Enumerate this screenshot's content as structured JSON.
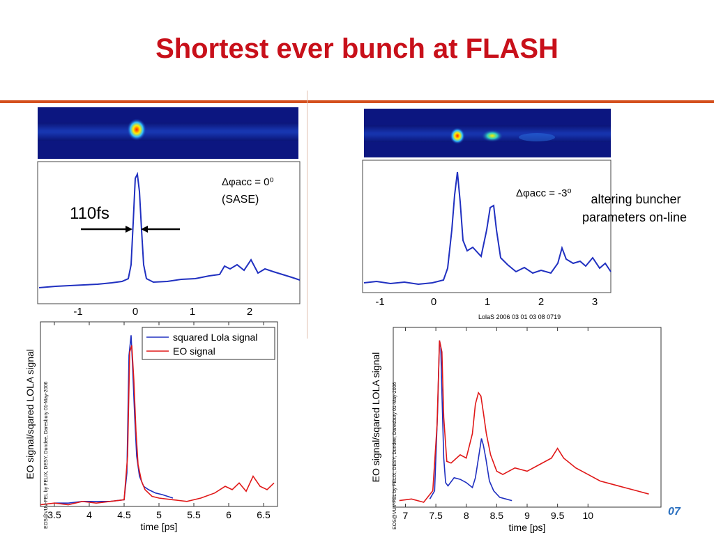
{
  "slide": {
    "title": "Shortest ever bunch at FLASH",
    "footer_fragment": "07"
  },
  "colors": {
    "title": "#c8101a",
    "rule": "#d4501e",
    "lola": "#2030c0",
    "eo": "#e01818"
  },
  "panel_left_top": {
    "annotation_phase": "Δφacc = 0⁰",
    "annotation_mode": "(SASE)",
    "width_label": "110fs",
    "x_ticks": [
      "-1",
      "0",
      "1",
      "2"
    ]
  },
  "panel_right_top": {
    "annotation_phase": "Δφacc = -3⁰",
    "side_note_line1": "altering buncher",
    "side_note_line2": "parameters on-line",
    "x_ticks": [
      "-1",
      "0",
      "1",
      "2",
      "3"
    ],
    "caption": "LolaS 2006 03 01 03 08 0719"
  },
  "chart_data": [
    {
      "type": "line",
      "id": "left-bottom",
      "xlabel": "time [ps]",
      "ylabel": "EO signal/sqared LOLA signal",
      "credit": "EOS@VUV-FEL by FELIX, DESY, Dundee, Daresbury 01-May-2006",
      "xlim": [
        3.3,
        6.7
      ],
      "ylim": [
        0,
        1.1
      ],
      "x_ticks": [
        3.5,
        4,
        4.5,
        5,
        5.5,
        6,
        6.5
      ],
      "legend": "top-right",
      "series": [
        {
          "name": "squared Lola signal",
          "color": "#2030c0",
          "x": [
            3.5,
            3.7,
            3.9,
            4.1,
            4.3,
            4.5,
            4.54,
            4.57,
            4.6,
            4.62,
            4.65,
            4.68,
            4.72,
            4.78,
            4.85,
            4.95,
            5.05,
            5.2
          ],
          "y": [
            0.02,
            0.02,
            0.03,
            0.03,
            0.03,
            0.04,
            0.2,
            0.9,
            1.02,
            0.85,
            0.55,
            0.3,
            0.18,
            0.12,
            0.1,
            0.08,
            0.07,
            0.05
          ]
        },
        {
          "name": "EO signal",
          "color": "#e01818",
          "x": [
            3.3,
            3.5,
            3.7,
            3.9,
            4.1,
            4.3,
            4.5,
            4.55,
            4.58,
            4.61,
            4.64,
            4.67,
            4.7,
            4.75,
            4.8,
            4.9,
            5.0,
            5.2,
            5.4,
            5.6,
            5.8,
            5.95,
            6.05,
            6.15,
            6.25,
            6.35,
            6.45,
            6.55,
            6.65
          ],
          "y": [
            0.01,
            0.02,
            0.01,
            0.03,
            0.02,
            0.03,
            0.04,
            0.3,
            0.92,
            0.96,
            0.75,
            0.45,
            0.25,
            0.15,
            0.1,
            0.06,
            0.05,
            0.04,
            0.03,
            0.05,
            0.08,
            0.12,
            0.1,
            0.14,
            0.09,
            0.18,
            0.12,
            0.1,
            0.14
          ]
        }
      ]
    },
    {
      "type": "line",
      "id": "right-bottom",
      "xlabel": "time [ps]",
      "ylabel": "EO signal/sqared LOLA signal",
      "credit": "EOS@VUV-FEL by FELIX, DESY, Dundee, Daresbury 01-May-2006",
      "xlim": [
        6.8,
        11.2
      ],
      "ylim": [
        0,
        1.1
      ],
      "x_ticks": [
        7,
        7.5,
        8,
        8.5,
        9,
        9.5,
        10
      ],
      "series": [
        {
          "name": "squared Lola",
          "color": "#2030c0",
          "x": [
            7.4,
            7.48,
            7.53,
            7.56,
            7.58,
            7.6,
            7.63,
            7.66,
            7.7,
            7.8,
            7.9,
            8.0,
            8.1,
            8.15,
            8.2,
            8.25,
            8.28,
            8.32,
            8.38,
            8.45,
            8.55,
            8.65,
            8.75
          ],
          "y": [
            0.05,
            0.1,
            0.6,
            1.02,
            0.98,
            0.7,
            0.3,
            0.15,
            0.13,
            0.18,
            0.17,
            0.15,
            0.12,
            0.18,
            0.3,
            0.42,
            0.38,
            0.3,
            0.16,
            0.1,
            0.06,
            0.05,
            0.04
          ]
        },
        {
          "name": "EO signal",
          "color": "#e01818",
          "x": [
            6.9,
            7.1,
            7.3,
            7.45,
            7.52,
            7.56,
            7.6,
            7.63,
            7.68,
            7.75,
            7.9,
            8.0,
            8.1,
            8.15,
            8.2,
            8.24,
            8.28,
            8.33,
            8.4,
            8.5,
            8.6,
            8.8,
            9.0,
            9.2,
            9.4,
            9.5,
            9.6,
            9.8,
            10.0,
            10.2,
            10.4,
            10.6,
            10.8,
            11.0
          ],
          "y": [
            0.04,
            0.05,
            0.03,
            0.1,
            0.5,
            1.02,
            0.95,
            0.55,
            0.28,
            0.27,
            0.32,
            0.3,
            0.45,
            0.63,
            0.7,
            0.68,
            0.58,
            0.45,
            0.32,
            0.22,
            0.2,
            0.24,
            0.22,
            0.26,
            0.3,
            0.36,
            0.3,
            0.24,
            0.2,
            0.16,
            0.14,
            0.12,
            0.1,
            0.08
          ]
        }
      ]
    }
  ]
}
